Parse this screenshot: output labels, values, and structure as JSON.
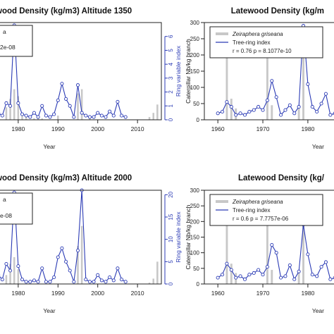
{
  "chart_data": [
    {
      "type": "bar",
      "title": "wood Density (kg/m3) Altitude 1350",
      "xlabel": "Year",
      "ylabel": "",
      "y2label": "Ring variable index",
      "y3label": "Caterpillar Nb/kg branch",
      "xlim": [
        1974,
        2016
      ],
      "xticks": [
        1980,
        1990,
        2000,
        2010
      ],
      "ylim": [
        0,
        7
      ],
      "yticks": [
        0,
        1,
        2,
        3,
        4,
        5,
        6
      ],
      "legend": {
        "fragments": [
          "a",
          "2e-08"
        ]
      },
      "series": [
        {
          "name": "",
          "kind": "bars",
          "color": "#c8c8c8",
          "x": [
            1977,
            1978,
            1979,
            1980,
            1981,
            1982,
            1984,
            1985,
            1986,
            1990,
            1995,
            1996,
            1998,
            2013,
            2014,
            2015
          ],
          "values": [
            0.9,
            1.5,
            2.2,
            1.7,
            0.4,
            0.2,
            0.1,
            0.1,
            0.1,
            0.3,
            1.9,
            2.2,
            0.2,
            0.2,
            0.5,
            1.1
          ]
        },
        {
          "name": "",
          "kind": "line",
          "color": "#2b3bb5",
          "x": [
            1975,
            1976,
            1977,
            1978,
            1979,
            1980,
            1981,
            1982,
            1983,
            1984,
            1985,
            1986,
            1987,
            1988,
            1989,
            1990,
            1991,
            1992,
            1993,
            1994,
            1995,
            1996,
            1997,
            1998,
            1999,
            2000,
            2001,
            2002,
            2003,
            2004,
            2005,
            2006,
            2007
          ],
          "values": [
            0.5,
            0.3,
            1.2,
            1.0,
            6.8,
            1.2,
            0.4,
            0.3,
            0.2,
            0.5,
            0.2,
            1.0,
            0.3,
            0.2,
            0.4,
            1.4,
            2.6,
            1.5,
            1.0,
            0.2,
            2.5,
            0.5,
            0.3,
            0.2,
            0.2,
            0.5,
            0.3,
            0.2,
            0.6,
            0.3,
            1.3,
            0.3,
            0.2
          ]
        }
      ]
    },
    {
      "type": "bar",
      "title": "Latewood Density (kg/m",
      "xlabel": "Year",
      "ylabel": "",
      "xlim": [
        1957,
        1988
      ],
      "xticks": [
        1960,
        1970,
        1980
      ],
      "ylim": [
        0,
        300
      ],
      "yticks": [
        0,
        50,
        100,
        150,
        200,
        250,
        300
      ],
      "legend": {
        "entries": [
          "Zeiraphera griseana",
          "Tree-ring index"
        ],
        "stat": "r = 0.76 p = 8.1077e-10"
      },
      "series": [
        {
          "name": "Zeiraphera griseana",
          "kind": "bars",
          "color": "#c8c8c8",
          "x": [
            1962,
            1963,
            1964,
            1971,
            1972,
            1978,
            1979
          ],
          "values": [
            240,
            65,
            35,
            190,
            45,
            35,
            260
          ]
        },
        {
          "name": "Tree-ring index",
          "kind": "line",
          "color": "#2b3bb5",
          "x": [
            1960,
            1961,
            1962,
            1963,
            1964,
            1965,
            1966,
            1967,
            1968,
            1969,
            1970,
            1971,
            1972,
            1973,
            1974,
            1975,
            1976,
            1977,
            1978,
            1979,
            1980,
            1981,
            1982,
            1983,
            1984,
            1985,
            1986
          ],
          "values": [
            20,
            25,
            55,
            40,
            15,
            20,
            15,
            25,
            30,
            40,
            30,
            60,
            120,
            70,
            15,
            30,
            45,
            20,
            40,
            290,
            110,
            40,
            25,
            50,
            80,
            15,
            20
          ]
        }
      ]
    },
    {
      "type": "bar",
      "title": "wood Density (kg/m3) Altitude 2000",
      "xlabel": "Year",
      "ylabel": "",
      "y2label": "Ring variable index",
      "y3label": "Caterpillar Nb/kg branch",
      "xlim": [
        1974,
        2016
      ],
      "xticks": [
        1980,
        1990,
        2000,
        2010
      ],
      "ylim": [
        0,
        21
      ],
      "yticks": [
        0,
        5,
        10,
        15,
        20
      ],
      "legend": {
        "fragments": [
          "a",
          "e-08"
        ]
      },
      "series": [
        {
          "name": "",
          "kind": "bars",
          "color": "#c8c8c8",
          "x": [
            1977,
            1978,
            1979,
            1980,
            1995,
            1996,
            2013,
            2014,
            2015
          ],
          "values": [
            2.0,
            4.5,
            6.0,
            3.3,
            8.5,
            13.0,
            0.3,
            1.2,
            5.0
          ]
        },
        {
          "name": "",
          "kind": "line",
          "color": "#2b3bb5",
          "x": [
            1975,
            1976,
            1977,
            1978,
            1979,
            1980,
            1981,
            1982,
            1983,
            1984,
            1985,
            1986,
            1987,
            1988,
            1989,
            1990,
            1991,
            1992,
            1993,
            1994,
            1995,
            1996,
            1997,
            1998,
            1999,
            2000,
            2001,
            2002,
            2003,
            2004,
            2005,
            2006,
            2007
          ],
          "values": [
            2.0,
            1.0,
            4.5,
            3.0,
            20.5,
            4.0,
            1.0,
            0.5,
            0.5,
            0.8,
            0.5,
            3.5,
            0.5,
            0.5,
            1.5,
            6.0,
            8.0,
            5.0,
            3.0,
            0.5,
            7.5,
            21.0,
            1.0,
            0.5,
            0.5,
            2.0,
            0.8,
            0.5,
            1.5,
            0.8,
            3.5,
            1.0,
            0.5
          ]
        }
      ]
    },
    {
      "type": "bar",
      "title": "Latewood Density (kg/",
      "xlabel": "Year",
      "ylabel": "",
      "xlim": [
        1957,
        1988
      ],
      "xticks": [
        1960,
        1970,
        1980
      ],
      "ylim": [
        0,
        300
      ],
      "yticks": [
        0,
        50,
        100,
        150,
        200,
        250,
        300
      ],
      "legend": {
        "entries": [
          "Zeiraphera griseana",
          "Tree-ring index"
        ],
        "stat": "r = 0.6 p = 7.7757e-06"
      },
      "series": [
        {
          "name": "Zeiraphera griseana",
          "kind": "bars",
          "color": "#c8c8c8",
          "x": [
            1962,
            1963,
            1964,
            1971,
            1972,
            1978,
            1979
          ],
          "values": [
            240,
            65,
            35,
            190,
            45,
            35,
            260
          ]
        },
        {
          "name": "Tree-ring index",
          "kind": "line",
          "color": "#2b3bb5",
          "x": [
            1960,
            1961,
            1962,
            1963,
            1964,
            1965,
            1966,
            1967,
            1968,
            1969,
            1970,
            1971,
            1972,
            1973,
            1974,
            1975,
            1976,
            1977,
            1978,
            1979,
            1980,
            1981,
            1982,
            1983,
            1984,
            1985,
            1986
          ],
          "values": [
            20,
            30,
            65,
            45,
            20,
            25,
            15,
            30,
            35,
            45,
            30,
            55,
            125,
            100,
            20,
            25,
            60,
            15,
            40,
            190,
            95,
            30,
            25,
            55,
            70,
            15,
            20
          ]
        }
      ]
    }
  ]
}
